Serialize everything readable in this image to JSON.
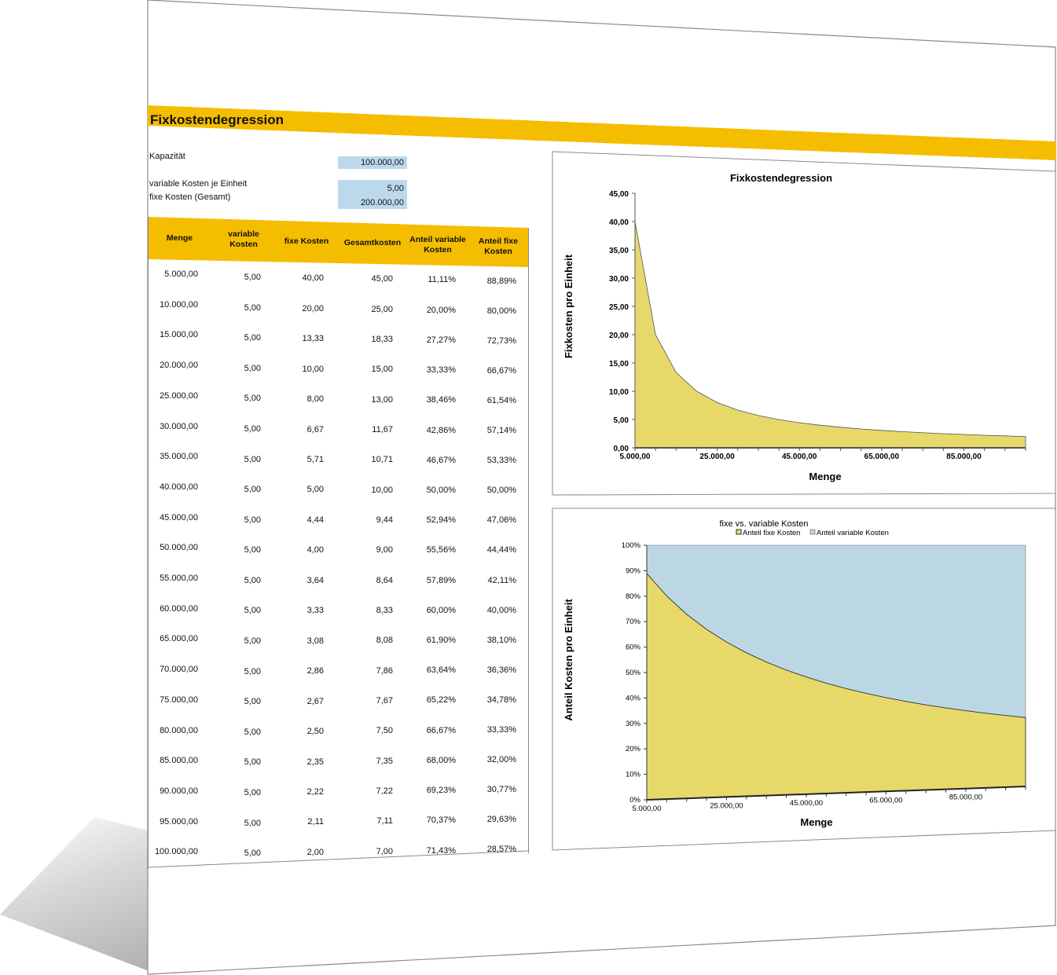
{
  "header": {
    "title": "Fixkostendegression"
  },
  "inputs": {
    "kapazitaet_label": "Kapazität",
    "kapazitaet_value": "100.000,00",
    "var_label": "variable Kosten je Einheit",
    "var_value": "5,00",
    "fix_label": "fixe Kosten (Gesamt)",
    "fix_value": "200.000,00"
  },
  "table": {
    "headers": [
      "Menge",
      "variable Kosten",
      "fixe Kosten",
      "Gesamtkosten",
      "Anteil variable Kosten",
      "Anteil fixe Kosten"
    ],
    "rows": [
      [
        "5.000,00",
        "5,00",
        "40,00",
        "45,00",
        "11,11%",
        "88,89%"
      ],
      [
        "10.000,00",
        "5,00",
        "20,00",
        "25,00",
        "20,00%",
        "80,00%"
      ],
      [
        "15.000,00",
        "5,00",
        "13,33",
        "18,33",
        "27,27%",
        "72,73%"
      ],
      [
        "20.000,00",
        "5,00",
        "10,00",
        "15,00",
        "33,33%",
        "66,67%"
      ],
      [
        "25.000,00",
        "5,00",
        "8,00",
        "13,00",
        "38,46%",
        "61,54%"
      ],
      [
        "30.000,00",
        "5,00",
        "6,67",
        "11,67",
        "42,86%",
        "57,14%"
      ],
      [
        "35.000,00",
        "5,00",
        "5,71",
        "10,71",
        "46,67%",
        "53,33%"
      ],
      [
        "40.000,00",
        "5,00",
        "5,00",
        "10,00",
        "50,00%",
        "50,00%"
      ],
      [
        "45.000,00",
        "5,00",
        "4,44",
        "9,44",
        "52,94%",
        "47,06%"
      ],
      [
        "50.000,00",
        "5,00",
        "4,00",
        "9,00",
        "55,56%",
        "44,44%"
      ],
      [
        "55.000,00",
        "5,00",
        "3,64",
        "8,64",
        "57,89%",
        "42,11%"
      ],
      [
        "60.000,00",
        "5,00",
        "3,33",
        "8,33",
        "60,00%",
        "40,00%"
      ],
      [
        "65.000,00",
        "5,00",
        "3,08",
        "8,08",
        "61,90%",
        "38,10%"
      ],
      [
        "70.000,00",
        "5,00",
        "2,86",
        "7,86",
        "63,64%",
        "36,36%"
      ],
      [
        "75.000,00",
        "5,00",
        "2,67",
        "7,67",
        "65,22%",
        "34,78%"
      ],
      [
        "80.000,00",
        "5,00",
        "2,50",
        "7,50",
        "66,67%",
        "33,33%"
      ],
      [
        "85.000,00",
        "5,00",
        "2,35",
        "7,35",
        "68,00%",
        "32,00%"
      ],
      [
        "90.000,00",
        "5,00",
        "2,22",
        "7,22",
        "69,23%",
        "30,77%"
      ],
      [
        "95.000,00",
        "5,00",
        "2,11",
        "7,11",
        "70,37%",
        "29,63%"
      ],
      [
        "100.000,00",
        "5,00",
        "2,00",
        "7,00",
        "71,43%",
        "28,57%"
      ]
    ]
  },
  "colors": {
    "accent": "#f5bd00",
    "input_fill": "#bcd9ec",
    "area_yellow": "#e6d96a",
    "area_blue": "#bcd7e4"
  },
  "chart_data": [
    {
      "type": "area",
      "title": "Fixkostendegression",
      "xlabel": "Menge",
      "ylabel": "Fixkosten pro Einheit",
      "x": [
        5000,
        10000,
        15000,
        20000,
        25000,
        30000,
        35000,
        40000,
        45000,
        50000,
        55000,
        60000,
        65000,
        70000,
        75000,
        80000,
        85000,
        90000,
        95000,
        100000
      ],
      "values": [
        40,
        20,
        13.33,
        10,
        8,
        6.67,
        5.71,
        5,
        4.44,
        4,
        3.64,
        3.33,
        3.08,
        2.86,
        2.67,
        2.5,
        2.35,
        2.22,
        2.11,
        2
      ],
      "ylim": [
        0,
        45
      ],
      "yticks": [
        "0,00",
        "5,00",
        "10,00",
        "15,00",
        "20,00",
        "25,00",
        "30,00",
        "35,00",
        "40,00",
        "45,00"
      ],
      "xticks": [
        "5.000,00",
        "25.000,00",
        "45.000,00",
        "65.000,00",
        "85.000,00"
      ],
      "legend": "none"
    },
    {
      "type": "area",
      "title": "fixe vs. variable  Kosten",
      "xlabel": "Menge",
      "ylabel": "Anteil Kosten pro Einheit",
      "x": [
        5000,
        10000,
        15000,
        20000,
        25000,
        30000,
        35000,
        40000,
        45000,
        50000,
        55000,
        60000,
        65000,
        70000,
        75000,
        80000,
        85000,
        90000,
        95000,
        100000
      ],
      "series": [
        {
          "name": "Anteil fixe Kosten",
          "values": [
            88.89,
            80,
            72.73,
            66.67,
            61.54,
            57.14,
            53.33,
            50,
            47.06,
            44.44,
            42.11,
            40,
            38.1,
            36.36,
            34.78,
            33.33,
            32,
            30.77,
            29.63,
            28.57
          ]
        },
        {
          "name": "Anteil variable Kosten",
          "values": [
            11.11,
            20,
            27.27,
            33.33,
            38.46,
            42.86,
            46.67,
            50,
            52.94,
            55.56,
            57.89,
            60,
            61.9,
            63.64,
            65.22,
            66.67,
            68,
            69.23,
            70.37,
            71.43
          ]
        }
      ],
      "ylim": [
        0,
        100
      ],
      "yticks": [
        "0%",
        "10%",
        "20%",
        "30%",
        "40%",
        "50%",
        "60%",
        "70%",
        "80%",
        "90%",
        "100%"
      ],
      "xticks": [
        "5.000,00",
        "25.000,00",
        "45.000,00",
        "65.000,00",
        "85.000,00"
      ],
      "legend": "top"
    }
  ]
}
